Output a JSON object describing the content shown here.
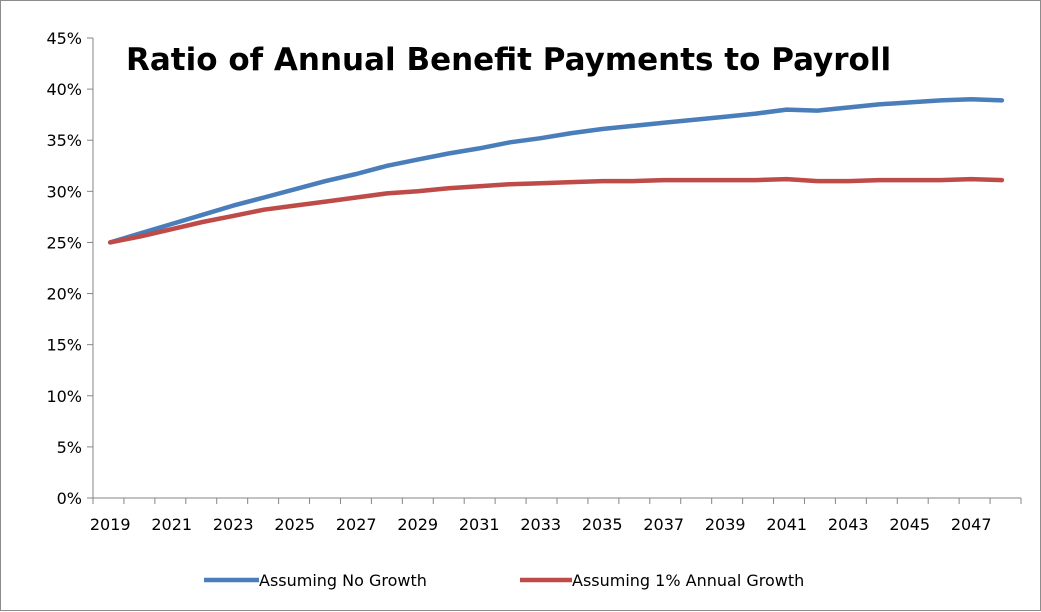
{
  "chart_data": {
    "type": "line",
    "title": "Ratio of Annual Benefit Payments to Payroll",
    "xlabel": "",
    "ylabel": "",
    "ylim": [
      0,
      0.45
    ],
    "y_tick_labels": [
      "0%",
      "5%",
      "10%",
      "15%",
      "20%",
      "25%",
      "30%",
      "35%",
      "40%",
      "45%"
    ],
    "y_ticks": [
      0,
      0.05,
      0.1,
      0.15,
      0.2,
      0.25,
      0.3,
      0.35,
      0.4,
      0.45
    ],
    "x_tick_labels": [
      "2019",
      "2021",
      "2023",
      "2025",
      "2027",
      "2029",
      "2031",
      "2033",
      "2035",
      "2037",
      "2039",
      "2041",
      "2043",
      "2045",
      "2047"
    ],
    "x": [
      2019,
      2020,
      2021,
      2022,
      2023,
      2024,
      2025,
      2026,
      2027,
      2028,
      2029,
      2030,
      2031,
      2032,
      2033,
      2034,
      2035,
      2036,
      2037,
      2038,
      2039,
      2040,
      2041,
      2042,
      2043,
      2044,
      2045,
      2046,
      2047,
      2048
    ],
    "grid": false,
    "legend_position": "bottom",
    "series": [
      {
        "name": "Assuming No Growth",
        "color": "#4a7ebb",
        "values": [
          0.25,
          0.259,
          0.268,
          0.277,
          0.286,
          0.294,
          0.302,
          0.31,
          0.317,
          0.325,
          0.331,
          0.337,
          0.342,
          0.348,
          0.352,
          0.357,
          0.361,
          0.364,
          0.367,
          0.37,
          0.373,
          0.376,
          0.38,
          0.379,
          0.382,
          0.385,
          0.387,
          0.389,
          0.39,
          0.389
        ]
      },
      {
        "name": "Assuming 1% Annual Growth",
        "color": "#be4b48",
        "values": [
          0.25,
          0.256,
          0.263,
          0.27,
          0.276,
          0.282,
          0.286,
          0.29,
          0.294,
          0.298,
          0.3,
          0.303,
          0.305,
          0.307,
          0.308,
          0.309,
          0.31,
          0.31,
          0.311,
          0.311,
          0.311,
          0.311,
          0.312,
          0.31,
          0.31,
          0.311,
          0.311,
          0.311,
          0.312,
          0.311
        ]
      }
    ]
  }
}
